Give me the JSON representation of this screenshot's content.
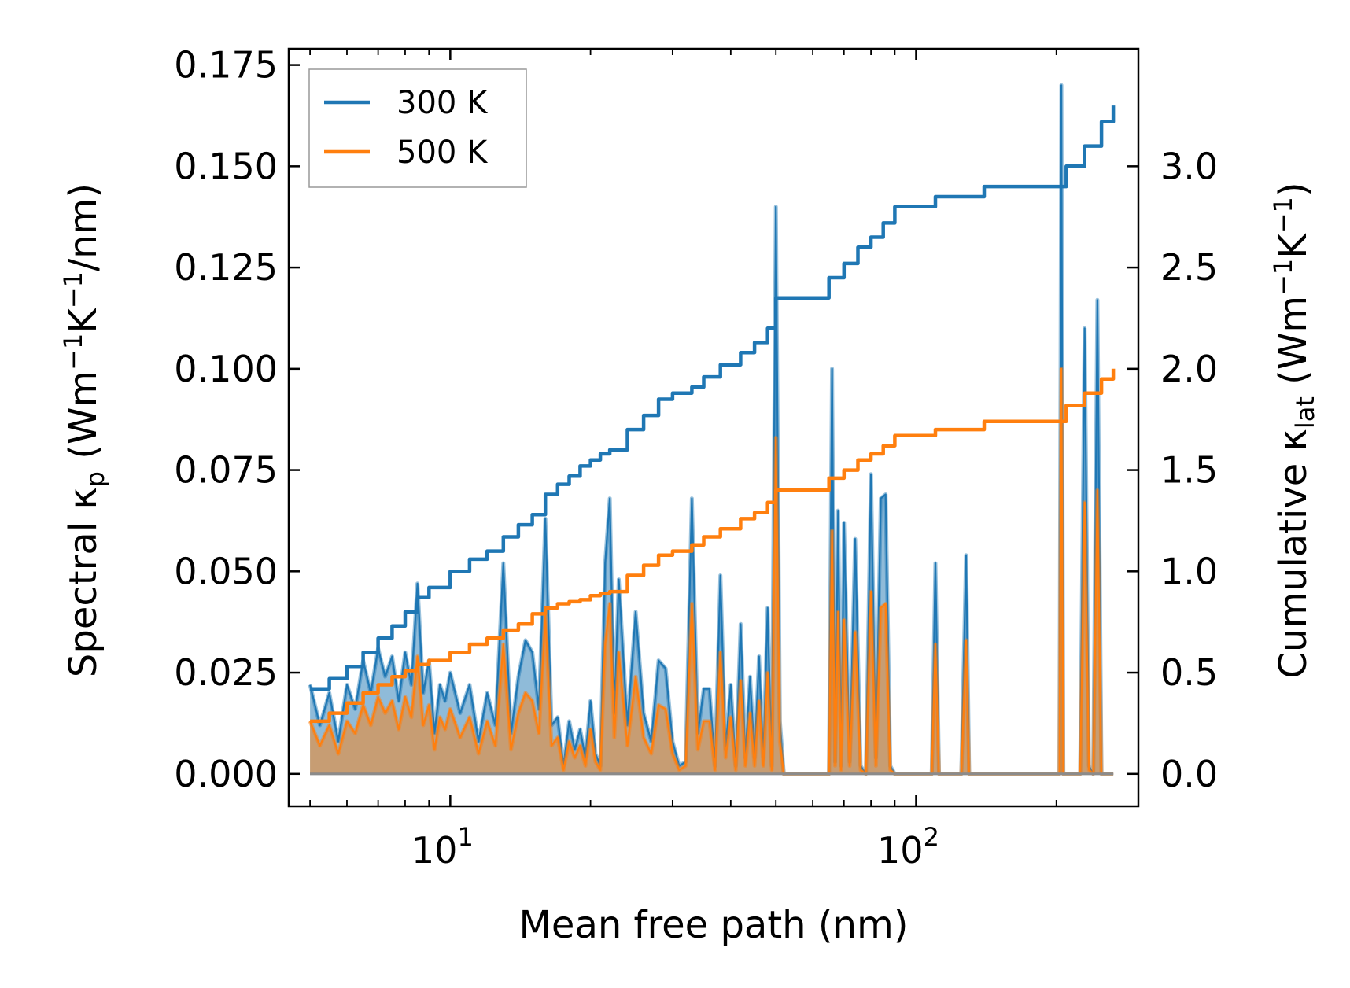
{
  "chart_data": {
    "type": "line",
    "xlabel": "Mean free path (nm)",
    "xscale": "log",
    "xlim": [
      4.5,
      300
    ],
    "x_ticks": [
      {
        "value": 10,
        "label_base": "10",
        "label_exp": "1"
      },
      {
        "value": 100,
        "label_base": "10",
        "label_exp": "2"
      }
    ],
    "ylabel_left": {
      "prefix": "Spectral κ",
      "sub": "p",
      "middle": " (Wm",
      "sup1": "−1",
      "k": "K",
      "sup2": "−1",
      "suffix": "/nm)"
    },
    "ylim_left": [
      -0.008,
      0.179
    ],
    "left_ticks": [
      "0.000",
      "0.025",
      "0.050",
      "0.075",
      "0.100",
      "0.125",
      "0.150",
      "0.175"
    ],
    "ylabel_right": {
      "prefix": "Cumulative κ",
      "sub": "lat",
      "middle": " (Wm",
      "sup1": "−1",
      "k": "K",
      "sup2": "−1",
      "suffix": ")"
    },
    "ylim_right": [
      -0.16,
      3.58
    ],
    "right_ticks": [
      "0.0",
      "0.5",
      "1.0",
      "1.5",
      "2.0",
      "2.5",
      "3.0"
    ],
    "legend": {
      "position": "top-left",
      "entries": [
        {
          "name": "300 K",
          "color": "#1f77b4"
        },
        {
          "name": "500 K",
          "color": "#ff7f0e"
        }
      ]
    },
    "series": [
      {
        "name": "300 K",
        "color": "#1f77b4",
        "axis": "right",
        "x": [
          5.0,
          5.5,
          6.0,
          6.5,
          7.0,
          7.5,
          8.0,
          8.5,
          9.0,
          10.0,
          11.0,
          12.0,
          13.0,
          14.0,
          15.0,
          16.0,
          17.0,
          18.0,
          19.0,
          20.0,
          21.0,
          22.0,
          24.0,
          26.0,
          28.0,
          30.0,
          33.0,
          35.0,
          38.0,
          42.0,
          45.0,
          48.0,
          50.0,
          55.0,
          60.0,
          65.0,
          70.0,
          75.0,
          80.0,
          85.0,
          90.0,
          100.0,
          110.0,
          120.0,
          140.0,
          160.0,
          200.0,
          210.0,
          230.0,
          250.0,
          265.0
        ],
        "y": [
          0.42,
          0.47,
          0.53,
          0.6,
          0.67,
          0.73,
          0.8,
          0.87,
          0.92,
          1.0,
          1.06,
          1.1,
          1.17,
          1.23,
          1.28,
          1.38,
          1.43,
          1.47,
          1.52,
          1.55,
          1.58,
          1.6,
          1.7,
          1.77,
          1.85,
          1.88,
          1.91,
          1.96,
          2.02,
          2.08,
          2.13,
          2.2,
          2.35,
          2.35,
          2.35,
          2.45,
          2.52,
          2.6,
          2.65,
          2.72,
          2.8,
          2.8,
          2.85,
          2.85,
          2.9,
          2.9,
          2.9,
          3.0,
          3.1,
          3.22,
          3.3
        ]
      },
      {
        "name": "500 K",
        "color": "#ff7f0e",
        "axis": "right",
        "x": [
          5.0,
          5.5,
          6.0,
          6.5,
          7.0,
          7.5,
          8.0,
          8.5,
          9.0,
          10.0,
          11.0,
          12.0,
          13.0,
          14.0,
          15.0,
          16.0,
          17.0,
          18.0,
          19.0,
          20.0,
          21.0,
          22.0,
          24.0,
          26.0,
          28.0,
          30.0,
          33.0,
          35.0,
          38.0,
          42.0,
          45.0,
          48.0,
          50.0,
          55.0,
          60.0,
          65.0,
          70.0,
          75.0,
          80.0,
          85.0,
          90.0,
          100.0,
          110.0,
          120.0,
          140.0,
          160.0,
          200.0,
          210.0,
          230.0,
          250.0,
          265.0
        ],
        "y": [
          0.26,
          0.3,
          0.35,
          0.4,
          0.44,
          0.48,
          0.51,
          0.54,
          0.56,
          0.6,
          0.64,
          0.67,
          0.71,
          0.74,
          0.79,
          0.82,
          0.84,
          0.85,
          0.86,
          0.88,
          0.89,
          0.9,
          0.98,
          1.03,
          1.08,
          1.1,
          1.13,
          1.17,
          1.21,
          1.26,
          1.29,
          1.34,
          1.4,
          1.4,
          1.4,
          1.46,
          1.5,
          1.55,
          1.58,
          1.62,
          1.67,
          1.67,
          1.7,
          1.7,
          1.74,
          1.74,
          1.74,
          1.82,
          1.88,
          1.95,
          2.0
        ]
      },
      {
        "name": "300 K spectral",
        "color": "#1f77b4",
        "axis": "left",
        "fill": true,
        "x": [
          5.0,
          5.25,
          5.5,
          5.75,
          6.0,
          6.25,
          6.5,
          6.75,
          7.0,
          7.25,
          7.5,
          7.75,
          8.0,
          8.25,
          8.5,
          8.75,
          9.0,
          9.25,
          9.5,
          9.75,
          10.0,
          10.5,
          11.0,
          11.5,
          12.0,
          12.5,
          13.0,
          13.5,
          14.0,
          14.5,
          15.0,
          15.5,
          16.0,
          16.5,
          17.0,
          17.5,
          18.0,
          18.5,
          19.0,
          19.5,
          20.0,
          20.5,
          21.0,
          21.5,
          22.0,
          22.5,
          23.0,
          24.0,
          25.0,
          26.0,
          27.0,
          28.0,
          29.0,
          30.0,
          31.0,
          32.0,
          33.0,
          34.0,
          35.0,
          36.0,
          37.0,
          38.0,
          39.0,
          40.0,
          41.0,
          42.0,
          43.0,
          44.0,
          45.0,
          46.0,
          47.0,
          48.0,
          49.0,
          50.0,
          51.0,
          52.0,
          53.0,
          55.0,
          60.0,
          63.0,
          65.0,
          66.0,
          67.0,
          68.0,
          69.0,
          70.0,
          72.0,
          74.0,
          76.0,
          78.0,
          80.0,
          82.0,
          84.0,
          86.0,
          88.0,
          90.0,
          92.0,
          100.0,
          108.0,
          110.0,
          112.0,
          115.0,
          125.0,
          128.0,
          130.0,
          133.0,
          190.0,
          203.0,
          205.0,
          207.0,
          215.0,
          225.0,
          230.0,
          235.0,
          240.0,
          245.0,
          250.0,
          255.0,
          260.0,
          265.0
        ],
        "y": [
          0.022,
          0.012,
          0.02,
          0.008,
          0.022,
          0.016,
          0.028,
          0.02,
          0.031,
          0.024,
          0.029,
          0.018,
          0.03,
          0.022,
          0.047,
          0.02,
          0.028,
          0.01,
          0.022,
          0.018,
          0.025,
          0.015,
          0.022,
          0.008,
          0.02,
          0.012,
          0.052,
          0.01,
          0.024,
          0.033,
          0.03,
          0.016,
          0.063,
          0.012,
          0.014,
          0.002,
          0.013,
          0.006,
          0.011,
          0.004,
          0.018,
          0.005,
          0.002,
          0.052,
          0.068,
          0.015,
          0.048,
          0.012,
          0.04,
          0.015,
          0.008,
          0.028,
          0.026,
          0.008,
          0.002,
          0.003,
          0.068,
          0.01,
          0.021,
          0.021,
          0.002,
          0.049,
          0.006,
          0.022,
          0.002,
          0.037,
          0.004,
          0.024,
          0.004,
          0.029,
          0.004,
          0.041,
          0.002,
          0.14,
          0.013,
          0.0,
          0.0,
          0.0,
          0.0,
          0.0,
          0.0,
          0.1,
          0.003,
          0.065,
          0.002,
          0.062,
          0.003,
          0.058,
          0.002,
          0.0,
          0.074,
          0.004,
          0.068,
          0.069,
          0.002,
          0.0,
          0.0,
          0.0,
          0.0,
          0.052,
          0.0,
          0.0,
          0.0,
          0.054,
          0.0,
          0.0,
          0.0,
          0.0,
          0.17,
          0.0,
          0.0,
          0.0,
          0.11,
          0.002,
          0.0,
          0.117,
          0.0,
          0.0,
          0.0,
          0.0
        ]
      },
      {
        "name": "500 K spectral",
        "color": "#ff7f0e",
        "axis": "left",
        "fill": true,
        "x": [
          5.0,
          5.25,
          5.5,
          5.75,
          6.0,
          6.25,
          6.5,
          6.75,
          7.0,
          7.25,
          7.5,
          7.75,
          8.0,
          8.25,
          8.5,
          8.75,
          9.0,
          9.25,
          9.5,
          9.75,
          10.0,
          10.5,
          11.0,
          11.5,
          12.0,
          12.5,
          13.0,
          13.5,
          14.0,
          14.5,
          15.0,
          15.5,
          16.0,
          16.5,
          17.0,
          17.5,
          18.0,
          18.5,
          19.0,
          19.5,
          20.0,
          20.5,
          21.0,
          21.5,
          22.0,
          22.5,
          23.0,
          24.0,
          25.0,
          26.0,
          27.0,
          28.0,
          29.0,
          30.0,
          31.0,
          32.0,
          33.0,
          34.0,
          35.0,
          36.0,
          37.0,
          38.0,
          39.0,
          40.0,
          41.0,
          42.0,
          43.0,
          44.0,
          45.0,
          46.0,
          47.0,
          48.0,
          49.0,
          50.0,
          51.0,
          52.0,
          53.0,
          55.0,
          60.0,
          63.0,
          65.0,
          66.0,
          67.0,
          68.0,
          69.0,
          70.0,
          72.0,
          74.0,
          76.0,
          78.0,
          80.0,
          82.0,
          84.0,
          86.0,
          88.0,
          90.0,
          92.0,
          100.0,
          108.0,
          110.0,
          112.0,
          115.0,
          125.0,
          128.0,
          130.0,
          133.0,
          190.0,
          203.0,
          205.0,
          207.0,
          215.0,
          225.0,
          230.0,
          235.0,
          240.0,
          245.0,
          250.0,
          255.0,
          260.0,
          265.0
        ],
        "y": [
          0.013,
          0.007,
          0.012,
          0.005,
          0.013,
          0.01,
          0.017,
          0.012,
          0.019,
          0.015,
          0.018,
          0.011,
          0.019,
          0.014,
          0.029,
          0.012,
          0.017,
          0.006,
          0.014,
          0.011,
          0.016,
          0.009,
          0.014,
          0.005,
          0.013,
          0.007,
          0.032,
          0.006,
          0.015,
          0.02,
          0.018,
          0.01,
          0.039,
          0.007,
          0.009,
          0.001,
          0.008,
          0.004,
          0.007,
          0.002,
          0.011,
          0.003,
          0.001,
          0.032,
          0.042,
          0.009,
          0.03,
          0.007,
          0.024,
          0.009,
          0.005,
          0.017,
          0.016,
          0.005,
          0.001,
          0.002,
          0.042,
          0.006,
          0.013,
          0.013,
          0.001,
          0.03,
          0.004,
          0.014,
          0.001,
          0.023,
          0.002,
          0.015,
          0.002,
          0.018,
          0.002,
          0.025,
          0.001,
          0.083,
          0.008,
          0.0,
          0.0,
          0.0,
          0.0,
          0.0,
          0.0,
          0.06,
          0.002,
          0.04,
          0.001,
          0.038,
          0.002,
          0.035,
          0.001,
          0.0,
          0.045,
          0.002,
          0.041,
          0.042,
          0.001,
          0.0,
          0.0,
          0.0,
          0.0,
          0.032,
          0.0,
          0.0,
          0.0,
          0.033,
          0.0,
          0.0,
          0.0,
          0.0,
          0.1,
          0.0,
          0.0,
          0.0,
          0.067,
          0.001,
          0.0,
          0.07,
          0.0,
          0.0,
          0.0,
          0.0
        ]
      }
    ]
  }
}
